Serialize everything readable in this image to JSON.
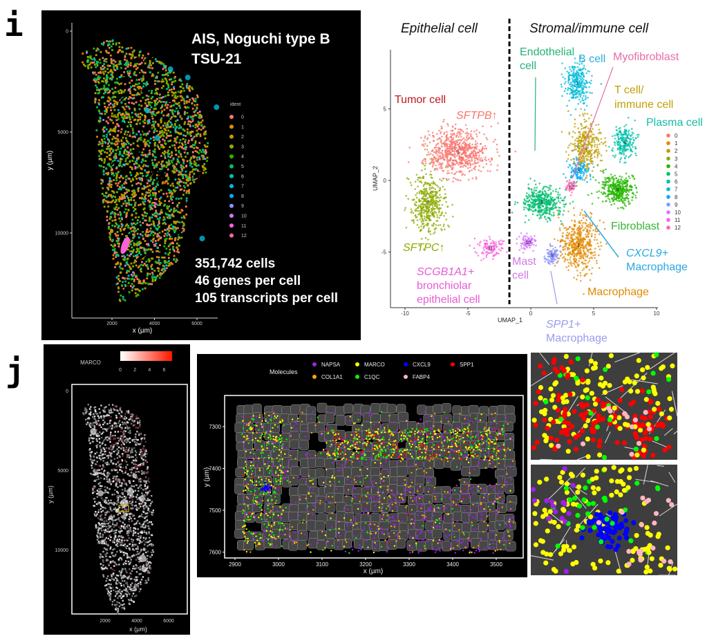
{
  "panel_labels": {
    "i": "i",
    "j": "j"
  },
  "chart_data": [
    {
      "id": "spatial_ident",
      "type": "scatter",
      "title": "AIS, Noguchi type B",
      "subtitle": "TSU-21",
      "xlabel": "x (µm)",
      "ylabel": "y (µm)",
      "xticks": [
        2000,
        4000,
        6000
      ],
      "yticks": [
        0,
        5000,
        10000
      ],
      "y_reversed": true,
      "background": "#000000",
      "legend": {
        "title": "ident",
        "placement": "right",
        "entries": [
          "0",
          "1",
          "2",
          "3",
          "4",
          "5",
          "6",
          "7",
          "8",
          "9",
          "10",
          "11",
          "12"
        ]
      },
      "annotations": [
        "351,742 cells",
        "46 genes per cell",
        "105 transcripts per cell"
      ]
    },
    {
      "id": "umap",
      "type": "scatter",
      "xlabel": "UMAP_1",
      "ylabel": "UMAP_2",
      "xticks": [
        -10,
        -5,
        0,
        5,
        10
      ],
      "yticks": [
        -5,
        0,
        5
      ],
      "xlim": [
        -11,
        10
      ],
      "ylim": [
        -9,
        9.2
      ],
      "divider_x": -1.7,
      "region_labels": [
        "Epithelial cell",
        "Stromal/immune cell"
      ],
      "clusters": [
        {
          "id": "0",
          "x": -5.8,
          "y": 2.0,
          "color": "#F8766D"
        },
        {
          "id": "1",
          "x": 3.8,
          "y": -4.5,
          "color": "#E18A00"
        },
        {
          "id": "2",
          "x": 4.4,
          "y": 2.3,
          "color": "#BE9C00"
        },
        {
          "id": "3",
          "x": -8.2,
          "y": -1.5,
          "color": "#8CAB00"
        },
        {
          "id": "4",
          "x": 6.9,
          "y": -0.6,
          "color": "#24B700"
        },
        {
          "id": "5",
          "x": 0.9,
          "y": -1.5,
          "color": "#00BE70"
        },
        {
          "id": "6",
          "x": 7.5,
          "y": 2.7,
          "color": "#00C1AB"
        },
        {
          "id": "7",
          "x": 3.7,
          "y": 6.8,
          "color": "#00BBDA"
        },
        {
          "id": "8",
          "x": 3.8,
          "y": 0.7,
          "color": "#00ACFC"
        },
        {
          "id": "9",
          "x": 1.7,
          "y": -5.2,
          "color": "#8B93FF"
        },
        {
          "id": "10",
          "x": -0.2,
          "y": -4.3,
          "color": "#D575FE"
        },
        {
          "id": "11",
          "x": -3.2,
          "y": -4.7,
          "color": "#F962DD"
        },
        {
          "id": "12",
          "x": 3.2,
          "y": -0.4,
          "color": "#FF65AC"
        }
      ],
      "legend": {
        "placement": "right",
        "entries": [
          "0",
          "1",
          "2",
          "3",
          "4",
          "5",
          "6",
          "7",
          "8",
          "9",
          "10",
          "11",
          "12"
        ]
      },
      "annotations": [
        {
          "lines": [
            "Tumor cell"
          ],
          "color": "#C0161E"
        },
        {
          "lines": [
            "SFTPB↑"
          ],
          "color": "#F8766D"
        },
        {
          "lines": [
            "SFTPC↑"
          ],
          "color": "#8CAB00"
        },
        {
          "lines": [
            "SCGB1A1+",
            "bronchiolar",
            "epithelial cell"
          ],
          "color": "#E85BD6"
        },
        {
          "lines": [
            "Endothelial",
            "cell"
          ],
          "color": "#21B472"
        },
        {
          "lines": [
            "B cell"
          ],
          "color": "#2AAEDB"
        },
        {
          "lines": [
            "Myofibroblast"
          ],
          "color": "#E76CA8"
        },
        {
          "lines": [
            "T cell/",
            "immune cell"
          ],
          "color": "#BFA000"
        },
        {
          "lines": [
            "Plasma cell"
          ],
          "color": "#15BDA5"
        },
        {
          "lines": [
            "Fibroblast"
          ],
          "color": "#3AB43A"
        },
        {
          "lines": [
            "CXCL9+",
            "Macrophage"
          ],
          "color": "#2AA8E0"
        },
        {
          "lines": [
            "Mast",
            "cell"
          ],
          "color": "#D278E6"
        },
        {
          "lines": [
            "Macrophage"
          ],
          "color": "#E08A00"
        },
        {
          "lines": [
            "SPP1+",
            "Macrophage"
          ],
          "color": "#9A9CF0"
        }
      ]
    },
    {
      "id": "spatial_marco",
      "type": "heatmap",
      "xlabel": "x (µm)",
      "ylabel": "y (µm)",
      "xticks": [
        2000,
        4000,
        6000
      ],
      "yticks": [
        0,
        5000,
        10000
      ],
      "y_reversed": true,
      "colorbar": {
        "label": "MARCO",
        "ticks": [
          0,
          2,
          4,
          6
        ],
        "range": [
          0,
          7
        ],
        "colors": [
          "#ffffff",
          "#ff1a00"
        ],
        "placement": "top"
      },
      "highlight_box_color": "#E0C020"
    },
    {
      "id": "molecules",
      "type": "scatter",
      "xlabel": "x (µm)",
      "ylabel": "y (µm)",
      "xticks": [
        2900,
        3000,
        3100,
        3200,
        3300,
        3400,
        3500
      ],
      "yticks": [
        7300,
        7400,
        7500,
        7600
      ],
      "y_reversed": true,
      "legend": {
        "title": "Molecules",
        "placement": "top",
        "entries": [
          {
            "name": "NAPSA",
            "color": "#A020F0"
          },
          {
            "name": "MARCO",
            "color": "#FFFF00"
          },
          {
            "name": "CXCL9",
            "color": "#0000FF"
          },
          {
            "name": "SPP1",
            "color": "#FF0000"
          },
          {
            "name": "COL1A1",
            "color": "#FFA500"
          },
          {
            "name": "C1QC",
            "color": "#00FF00"
          },
          {
            "name": "FABP4",
            "color": "#FFB6C1"
          }
        ]
      }
    }
  ]
}
